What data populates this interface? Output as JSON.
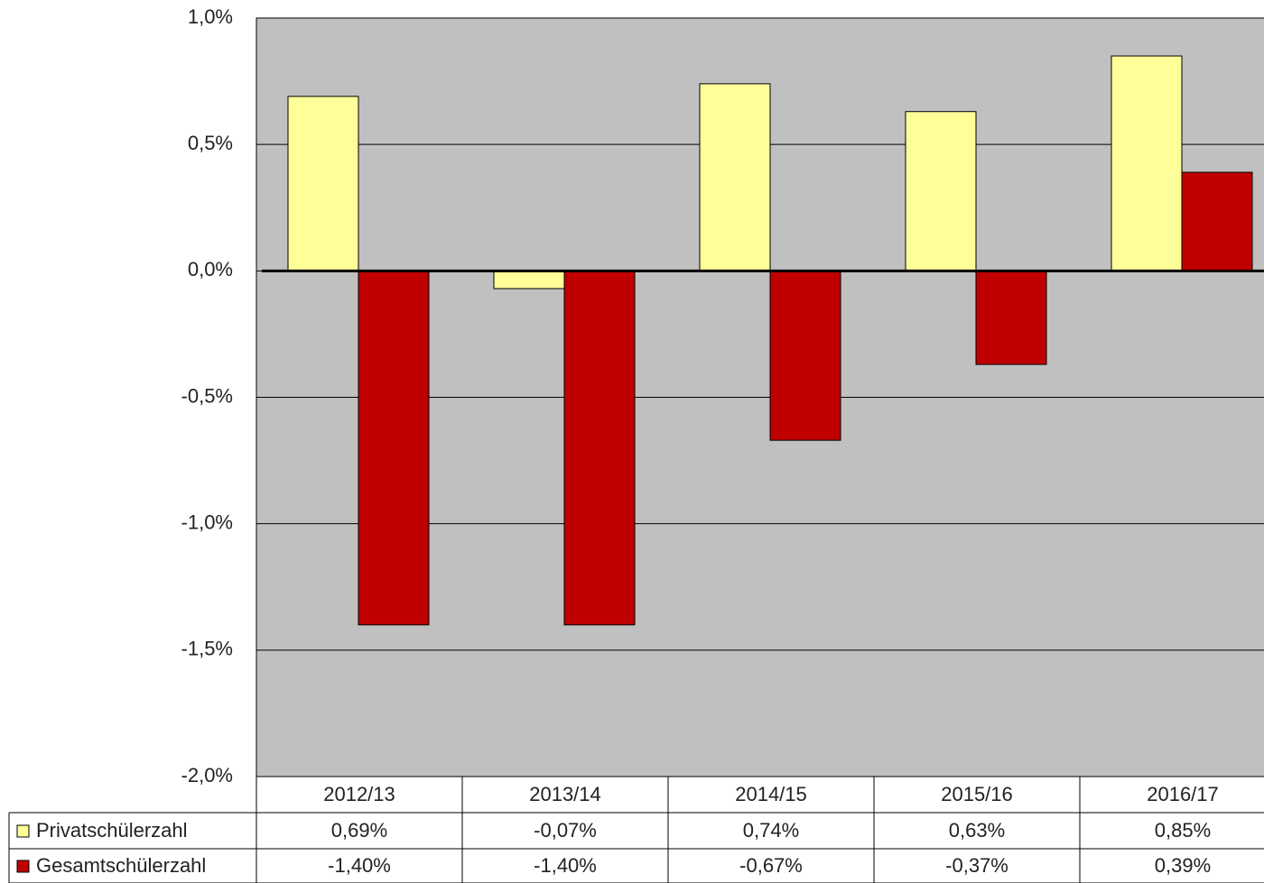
{
  "chart_data": {
    "type": "bar",
    "categories": [
      "2012/13",
      "2013/14",
      "2014/15",
      "2015/16",
      "2016/17"
    ],
    "series": [
      {
        "name": "Privatschülerzahl",
        "color": "#ffff99",
        "values": [
          0.69,
          -0.07,
          0.74,
          0.63,
          0.85
        ],
        "value_labels": [
          "0,69%",
          "-0,07%",
          "0,74%",
          "0,63%",
          "0,85%"
        ]
      },
      {
        "name": "Gesamtschülerzahl",
        "color": "#c00000",
        "values": [
          -1.4,
          -1.4,
          -0.67,
          -0.37,
          0.39
        ],
        "value_labels": [
          "-1,40%",
          "-1,40%",
          "-0,67%",
          "-0,37%",
          "0,39%"
        ]
      }
    ],
    "ylim": [
      -2,
      1
    ],
    "yticks": [
      {
        "value": -2,
        "label": "-2,0%"
      },
      {
        "value": -1.5,
        "label": "-1,5%"
      },
      {
        "value": -1,
        "label": "-1,0%"
      },
      {
        "value": -0.5,
        "label": "-0,5%"
      },
      {
        "value": 0,
        "label": "0,0%"
      },
      {
        "value": 0.5,
        "label": "0,5%"
      },
      {
        "value": 1,
        "label": "1,0%"
      }
    ],
    "grid": true
  }
}
